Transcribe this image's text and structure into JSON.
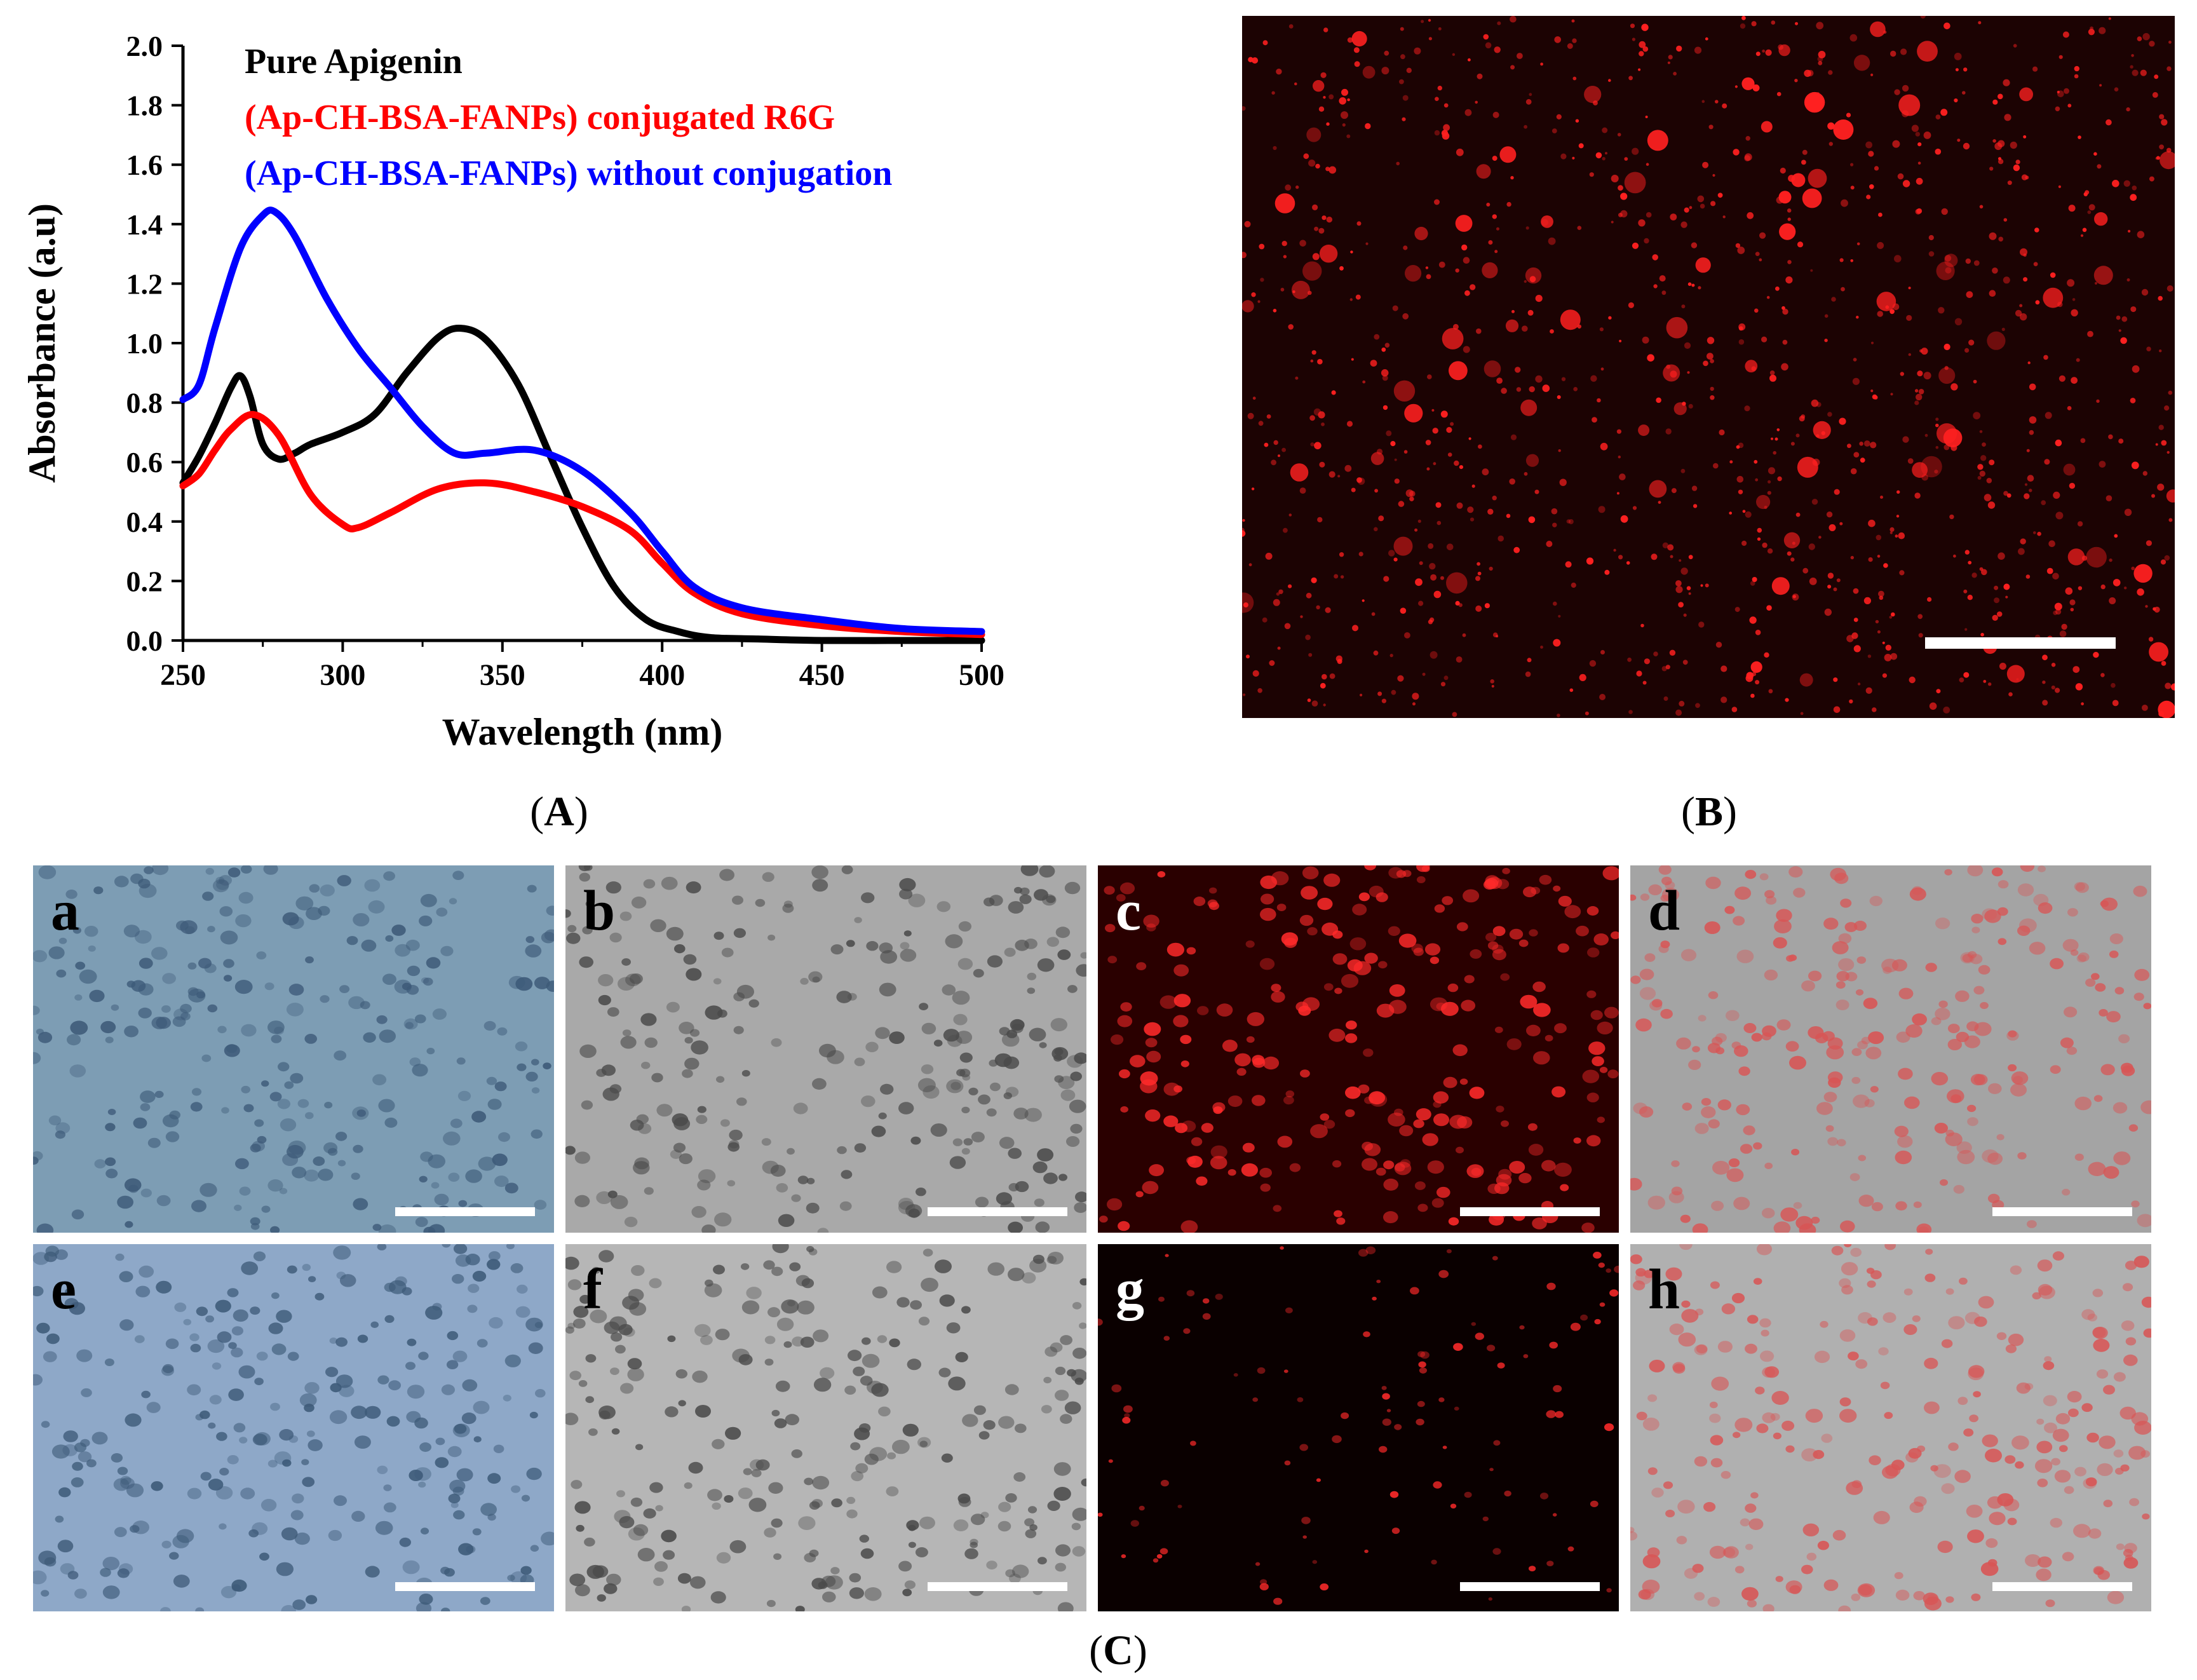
{
  "panels": {
    "A": {
      "label_open": "(",
      "label_letter": "A",
      "label_close": ")"
    },
    "B": {
      "label_open": "(",
      "label_letter": "B",
      "label_close": ")"
    },
    "C": {
      "label_open": "(",
      "label_letter": "C",
      "label_close": ")"
    }
  },
  "chart_data": {
    "type": "line",
    "title": "",
    "xlabel": "Wavelength (nm)",
    "ylabel": "Absorbance (a.u)",
    "xlim": [
      250,
      500
    ],
    "ylim": [
      0.0,
      2.0
    ],
    "x_ticks": [
      250,
      300,
      350,
      400,
      450,
      500
    ],
    "y_ticks": [
      0.0,
      0.2,
      0.4,
      0.6,
      0.8,
      1.0,
      1.2,
      1.4,
      1.6,
      1.8,
      2.0
    ],
    "x_tick_labels": [
      "250",
      "300",
      "350",
      "400",
      "450",
      "500"
    ],
    "y_tick_labels": [
      "0.0",
      "0.2",
      "0.4",
      "0.6",
      "0.8",
      "1.0",
      "1.2",
      "1.4",
      "1.6",
      "1.8",
      "2.0"
    ],
    "legend_position": "top-left",
    "series": [
      {
        "name": "Pure Apigenin",
        "color": "#000000",
        "x": [
          250,
          255,
          260,
          265,
          268,
          271,
          275,
          280,
          285,
          290,
          300,
          310,
          320,
          330,
          337,
          345,
          355,
          365,
          375,
          385,
          395,
          405,
          415,
          430,
          450,
          475,
          500
        ],
        "y": [
          0.53,
          0.62,
          0.73,
          0.85,
          0.89,
          0.82,
          0.66,
          0.61,
          0.63,
          0.66,
          0.7,
          0.76,
          0.9,
          1.02,
          1.05,
          1.01,
          0.86,
          0.62,
          0.38,
          0.18,
          0.07,
          0.03,
          0.01,
          0.005,
          0.0,
          0.0,
          0.0
        ]
      },
      {
        "name": "(Ap-CH-BSA-FANPs) conjugated R6G",
        "color": "#ff0000",
        "x": [
          250,
          255,
          260,
          265,
          272,
          280,
          290,
          300,
          305,
          315,
          330,
          345,
          360,
          375,
          390,
          400,
          410,
          425,
          450,
          475,
          500
        ],
        "y": [
          0.52,
          0.56,
          0.64,
          0.71,
          0.76,
          0.69,
          0.49,
          0.39,
          0.38,
          0.43,
          0.51,
          0.53,
          0.5,
          0.45,
          0.37,
          0.26,
          0.16,
          0.09,
          0.05,
          0.03,
          0.02
        ]
      },
      {
        "name": "(Ap-CH-BSA-FANPs) without conjugation",
        "color": "#0000ff",
        "x": [
          250,
          255,
          260,
          268,
          275,
          279,
          285,
          295,
          305,
          315,
          325,
          335,
          345,
          360,
          375,
          390,
          400,
          410,
          425,
          450,
          475,
          500
        ],
        "y": [
          0.81,
          0.86,
          1.05,
          1.32,
          1.43,
          1.44,
          1.36,
          1.15,
          0.98,
          0.85,
          0.72,
          0.63,
          0.63,
          0.64,
          0.57,
          0.43,
          0.3,
          0.18,
          0.11,
          0.07,
          0.04,
          0.03
        ]
      }
    ]
  },
  "micrographs": {
    "letters": [
      "a",
      "b",
      "c",
      "d",
      "e",
      "f",
      "g",
      "h"
    ]
  },
  "colors": {
    "fluorescent_bg": "#1a0000",
    "fluorescent_dot": "#ff2020",
    "brightfield_blue": "#7a9cb6",
    "brightfield_gray": "#a8a8a8"
  }
}
